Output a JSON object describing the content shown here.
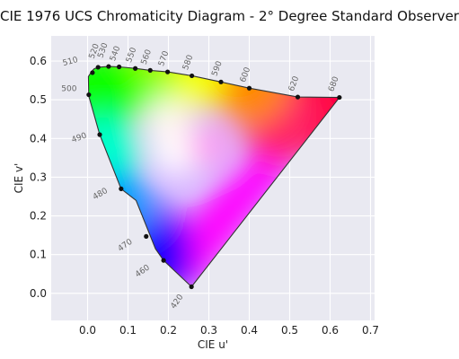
{
  "chart_data": {
    "type": "scatter",
    "title": "CIE 1976 UCS Chromaticity Diagram - 2° Degree Standard Observer",
    "xlabel": "CIE u'",
    "ylabel": "CIE v'",
    "xlim": [
      -0.09,
      0.71
    ],
    "ylim": [
      -0.07,
      0.665
    ],
    "x_ticks": [
      "0.0",
      "0.1",
      "0.2",
      "0.3",
      "0.4",
      "0.5",
      "0.6",
      "0.7"
    ],
    "y_ticks": [
      "0.0",
      "0.1",
      "0.2",
      "0.3",
      "0.4",
      "0.5",
      "0.6"
    ],
    "grid": true,
    "background": "#e9e9f1",
    "spectral_locus": {
      "u": [
        0.257,
        0.188,
        0.168,
        0.12,
        0.083,
        0.03,
        0.003,
        0.002,
        0.01,
        0.016,
        0.026,
        0.052,
        0.078,
        0.118,
        0.155,
        0.198,
        0.258,
        0.33,
        0.4,
        0.52,
        0.623
      ],
      "v": [
        0.017,
        0.085,
        0.115,
        0.24,
        0.27,
        0.41,
        0.51,
        0.56,
        0.573,
        0.58,
        0.584,
        0.586,
        0.585,
        0.581,
        0.576,
        0.572,
        0.562,
        0.546,
        0.53,
        0.507,
        0.506
      ]
    },
    "marked_points": [
      {
        "label": "420",
        "u": 0.257,
        "v": 0.017
      },
      {
        "label": "460",
        "u": 0.188,
        "v": 0.085
      },
      {
        "label": "470",
        "u": 0.145,
        "v": 0.147
      },
      {
        "label": "480",
        "u": 0.083,
        "v": 0.27
      },
      {
        "label": "490",
        "u": 0.03,
        "v": 0.41
      },
      {
        "label": "500",
        "u": 0.003,
        "v": 0.513
      },
      {
        "label": "510",
        "u": 0.012,
        "v": 0.57
      },
      {
        "label": "520",
        "u": 0.026,
        "v": 0.584
      },
      {
        "label": "530",
        "u": 0.052,
        "v": 0.586
      },
      {
        "label": "540",
        "u": 0.078,
        "v": 0.585
      },
      {
        "label": "550",
        "u": 0.118,
        "v": 0.581
      },
      {
        "label": "560",
        "u": 0.155,
        "v": 0.576
      },
      {
        "label": "570",
        "u": 0.198,
        "v": 0.572
      },
      {
        "label": "580",
        "u": 0.258,
        "v": 0.562
      },
      {
        "label": "590",
        "u": 0.33,
        "v": 0.546
      },
      {
        "label": "600",
        "u": 0.4,
        "v": 0.53
      },
      {
        "label": "620",
        "u": 0.52,
        "v": 0.507
      },
      {
        "label": "680",
        "u": 0.623,
        "v": 0.506
      }
    ],
    "colors": {
      "green": "#11ff00",
      "cyan": "#00ffcc",
      "blue": "#1a00ff",
      "violet": "#8800ff",
      "magenta": "#ff00ff",
      "red": "#ff0040",
      "orange": "#ff8800",
      "yellow": "#f4ff00",
      "white": "#ffffff",
      "point": "#111111"
    }
  }
}
